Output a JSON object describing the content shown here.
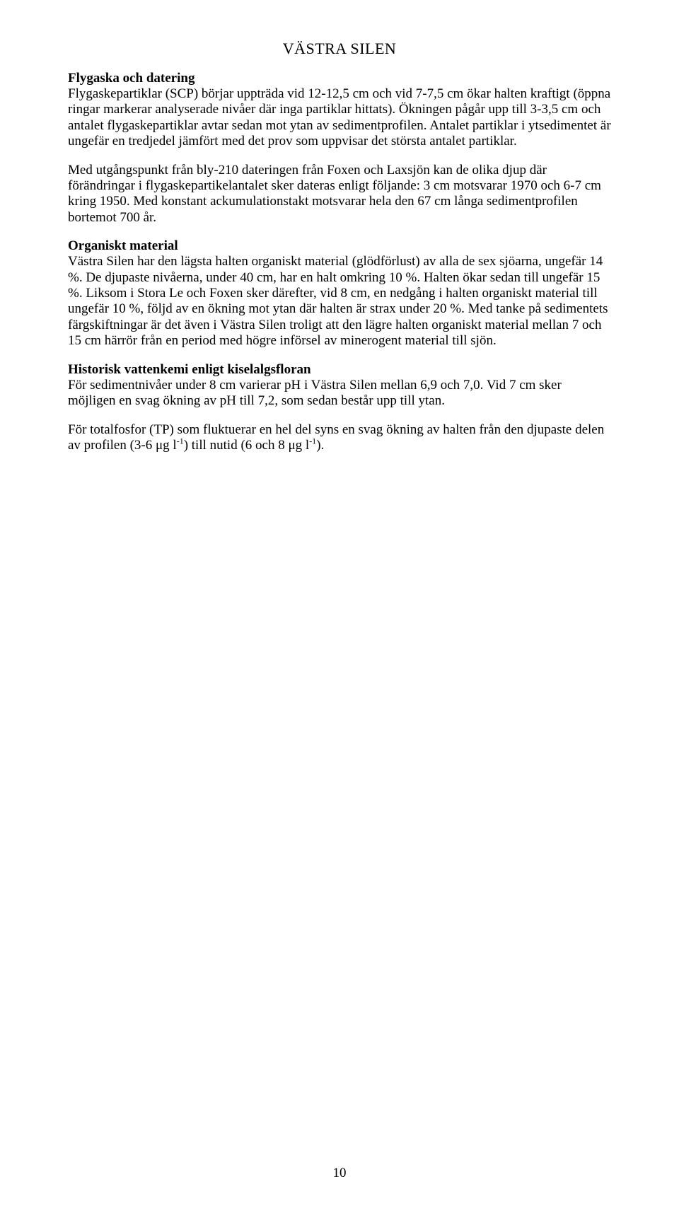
{
  "title": "VÄSTRA SILEN",
  "sections": {
    "flygaska": {
      "heading": "Flygaska och datering",
      "p1": "Flygaskepartiklar (SCP) börjar uppträda vid 12-12,5 cm och vid 7-7,5 cm ökar halten kraftigt (öppna ringar markerar analyserade nivåer där inga partiklar hittats). Ökningen pågår upp till 3-3,5 cm och antalet flygaskepartiklar avtar sedan mot ytan av sedimentprofilen. Antalet partiklar i ytsedimentet är ungefär en tredjedel jämfört med det prov som uppvisar det största antalet partiklar.",
      "p2": "Med utgångspunkt från bly-210 dateringen från Foxen och Laxsjön kan de olika djup där förändringar i flygaskepartikelantalet sker dateras enligt följande: 3 cm motsvarar 1970 och 6-7 cm kring 1950. Med konstant ackumulationstakt motsvarar hela den 67 cm långa sedimentprofilen bortemot 700 år."
    },
    "organiskt": {
      "heading": "Organiskt material",
      "p1": "Västra Silen har den lägsta halten organiskt material (glödförlust) av alla de sex sjöarna, ungefär 14 %. De djupaste nivåerna, under 40 cm, har en halt omkring 10 %. Halten ökar sedan till ungefär 15 %. Liksom i Stora Le och Foxen sker därefter, vid 8 cm, en nedgång i halten organiskt material till ungefär 10 %, följd av en ökning mot ytan där halten är strax under 20 %. Med tanke på sedimentets färgskiftningar är det även i Västra Silen troligt att den lägre halten organiskt material mellan 7 och 15 cm härrör från en period med högre införsel av minerogent material till sjön."
    },
    "historisk": {
      "heading": "Historisk vattenkemi enligt kiselalgsfloran",
      "p1": "För sedimentnivåer under 8 cm varierar pH i Västra Silen mellan 6,9 och 7,0. Vid 7 cm sker möjligen en svag ökning av pH till 7,2, som sedan består upp till ytan.",
      "p2a": "För totalfosfor (TP) som fluktuerar en hel del syns en svag ökning av halten från den djupaste delen av profilen (3-6 μg l",
      "p2b": ") till nutid (6 och 8 μg l",
      "p2c": ").",
      "exp": "-1"
    }
  },
  "pagenum": "10"
}
